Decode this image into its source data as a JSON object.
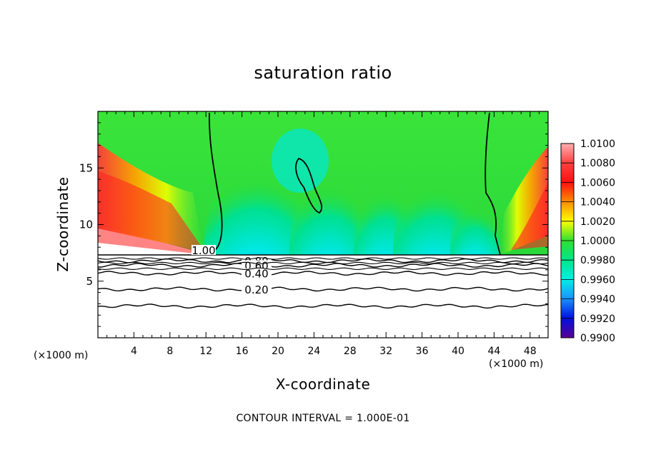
{
  "chart_data": {
    "type": "heatmap",
    "title": "saturation ratio",
    "xlabel": "X-coordinate",
    "ylabel": "Z-coordinate",
    "x_unit_label": "(×1000 m)",
    "x_unit_label_right": "(×1000 m)",
    "xlim": [
      0,
      50
    ],
    "ylim": [
      0,
      20
    ],
    "x_ticks": [
      4,
      8,
      12,
      16,
      20,
      24,
      28,
      32,
      36,
      40,
      44,
      48
    ],
    "y_ticks": [
      5,
      10,
      15
    ],
    "colorbar": {
      "ticks": [
        "1.0100",
        "1.0080",
        "1.0060",
        "1.0040",
        "1.0020",
        "1.0000",
        "0.9980",
        "0.9960",
        "0.9940",
        "0.9920",
        "0.9900"
      ],
      "range": [
        0.99,
        1.01
      ],
      "colors": [
        "#ffb0b0",
        "#ff2020",
        "#ff8c00",
        "#e8ff00",
        "#32e632",
        "#00e08a",
        "#00f0e0",
        "#1a8cff",
        "#0014e6",
        "#5a0096"
      ]
    },
    "contour_interval": "CONTOUR INTERVAL = 1.000E-01",
    "contour_labels": [
      "1.00",
      "0.80",
      "0.60",
      "0.40",
      "0.20"
    ],
    "lower_contour_levels": [
      {
        "label": "0.80",
        "z": 6.8
      },
      {
        "label": "0.60",
        "z": 6.4
      },
      {
        "label": "0.40",
        "z": 5.7
      },
      {
        "label": "0.20",
        "z": 4.3
      },
      {
        "label": "",
        "z": 2.8
      }
    ],
    "field_description_points": {
      "cloud_base_z": 7.2,
      "left_moist_edge_x": 12.5,
      "right_moist_edge_x": 44.5
    }
  }
}
